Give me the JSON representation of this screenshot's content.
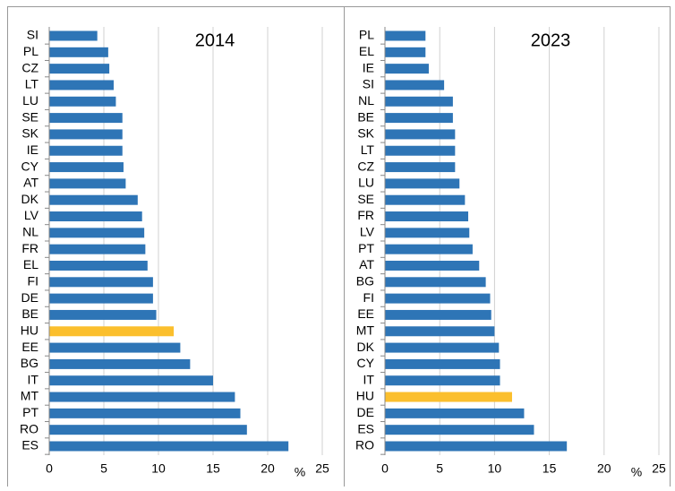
{
  "chart_data": [
    {
      "type": "bar",
      "orientation": "horizontal",
      "title": "2014",
      "x_label": "%",
      "categories": [
        "SI",
        "PL",
        "CZ",
        "LT",
        "LU",
        "SE",
        "SK",
        "IE",
        "CY",
        "AT",
        "DK",
        "LV",
        "NL",
        "FR",
        "EL",
        "FI",
        "DE",
        "BE",
        "HU",
        "EE",
        "BG",
        "IT",
        "MT",
        "PT",
        "RO",
        "ES"
      ],
      "values": [
        4.4,
        5.4,
        5.5,
        5.9,
        6.1,
        6.7,
        6.7,
        6.7,
        6.8,
        7.0,
        8.1,
        8.5,
        8.7,
        8.8,
        9.0,
        9.5,
        9.5,
        9.8,
        11.4,
        12.0,
        12.9,
        15.0,
        17.0,
        17.5,
        18.1,
        21.9
      ],
      "colors": [
        "#2e75b6",
        "#2e75b6",
        "#2e75b6",
        "#2e75b6",
        "#2e75b6",
        "#2e75b6",
        "#2e75b6",
        "#2e75b6",
        "#2e75b6",
        "#2e75b6",
        "#2e75b6",
        "#2e75b6",
        "#2e75b6",
        "#2e75b6",
        "#2e75b6",
        "#2e75b6",
        "#2e75b6",
        "#2e75b6",
        "#fbbf2d",
        "#2e75b6",
        "#2e75b6",
        "#2e75b6",
        "#2e75b6",
        "#2e75b6",
        "#2e75b6",
        "#2e75b6"
      ],
      "xlim": [
        0,
        25
      ],
      "xticks": [
        0,
        5,
        10,
        15,
        20,
        25
      ],
      "grid": true
    },
    {
      "type": "bar",
      "orientation": "horizontal",
      "title": "2023",
      "x_label": "%",
      "categories": [
        "PL",
        "EL",
        "IE",
        "SI",
        "NL",
        "BE",
        "SK",
        "LT",
        "CZ",
        "LU",
        "SE",
        "FR",
        "LV",
        "PT",
        "AT",
        "BG",
        "FI",
        "EE",
        "MT",
        "DK",
        "CY",
        "IT",
        "HU",
        "DE",
        "ES",
        "RO"
      ],
      "values": [
        3.7,
        3.7,
        4.0,
        5.4,
        6.2,
        6.2,
        6.4,
        6.4,
        6.4,
        6.8,
        7.3,
        7.6,
        7.7,
        8.0,
        8.6,
        9.2,
        9.6,
        9.7,
        10.0,
        10.4,
        10.5,
        10.5,
        11.6,
        12.7,
        13.6,
        16.6
      ],
      "colors": [
        "#2e75b6",
        "#2e75b6",
        "#2e75b6",
        "#2e75b6",
        "#2e75b6",
        "#2e75b6",
        "#2e75b6",
        "#2e75b6",
        "#2e75b6",
        "#2e75b6",
        "#2e75b6",
        "#2e75b6",
        "#2e75b6",
        "#2e75b6",
        "#2e75b6",
        "#2e75b6",
        "#2e75b6",
        "#2e75b6",
        "#2e75b6",
        "#2e75b6",
        "#2e75b6",
        "#2e75b6",
        "#fbbf2d",
        "#2e75b6",
        "#2e75b6",
        "#2e75b6"
      ],
      "xlim": [
        0,
        25
      ],
      "xticks": [
        0,
        5,
        10,
        15,
        20,
        25
      ],
      "grid": true
    }
  ]
}
